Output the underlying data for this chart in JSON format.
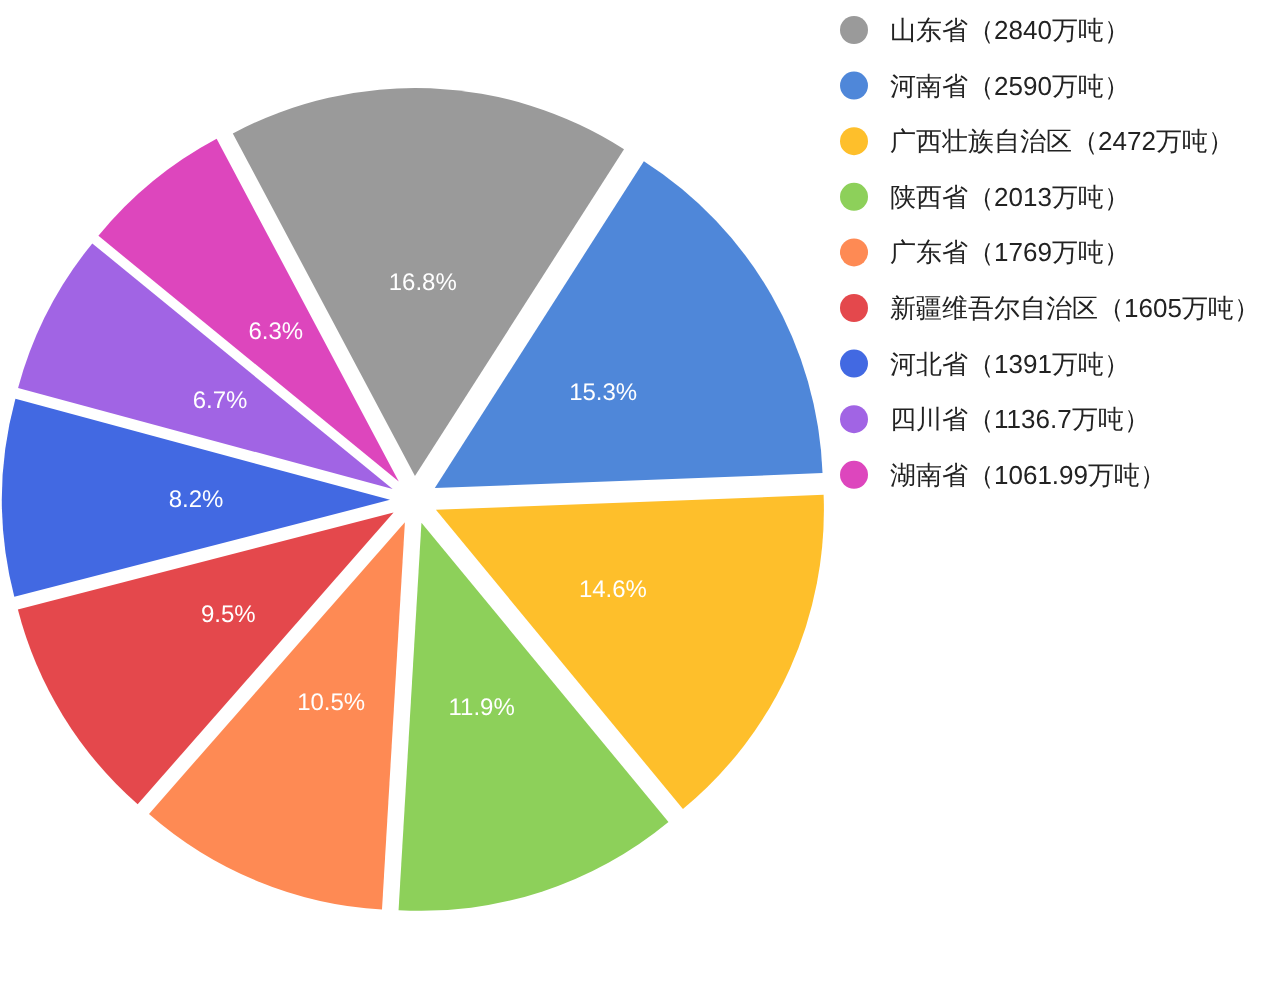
{
  "chart_data": {
    "type": "pie",
    "categories": [
      "山东省（2840万吨）",
      "河南省（2590万吨）",
      "广西壮族自治区（2472万吨）",
      "陕西省（2013万吨）",
      "广东省（1769万吨）",
      "新疆维吾尔自治区（1605万吨）",
      "河北省（1391万吨）",
      "四川省（1136.7万吨）",
      "湖南省（1061.99万吨）"
    ],
    "values": [
      16.8,
      15.3,
      14.6,
      11.9,
      10.5,
      9.5,
      8.2,
      6.7,
      6.3
    ],
    "value_labels": [
      "16.8%",
      "15.3%",
      "14.6%",
      "11.9%",
      "10.5%",
      "9.5%",
      "8.2%",
      "6.7%",
      "6.3%"
    ],
    "colors": [
      "#9a9a9a",
      "#4f87d9",
      "#febf2b",
      "#8dd05a",
      "#fe8a54",
      "#e4484c",
      "#4269e2",
      "#a164e4",
      "#dd46bd"
    ],
    "legend": "top right"
  }
}
